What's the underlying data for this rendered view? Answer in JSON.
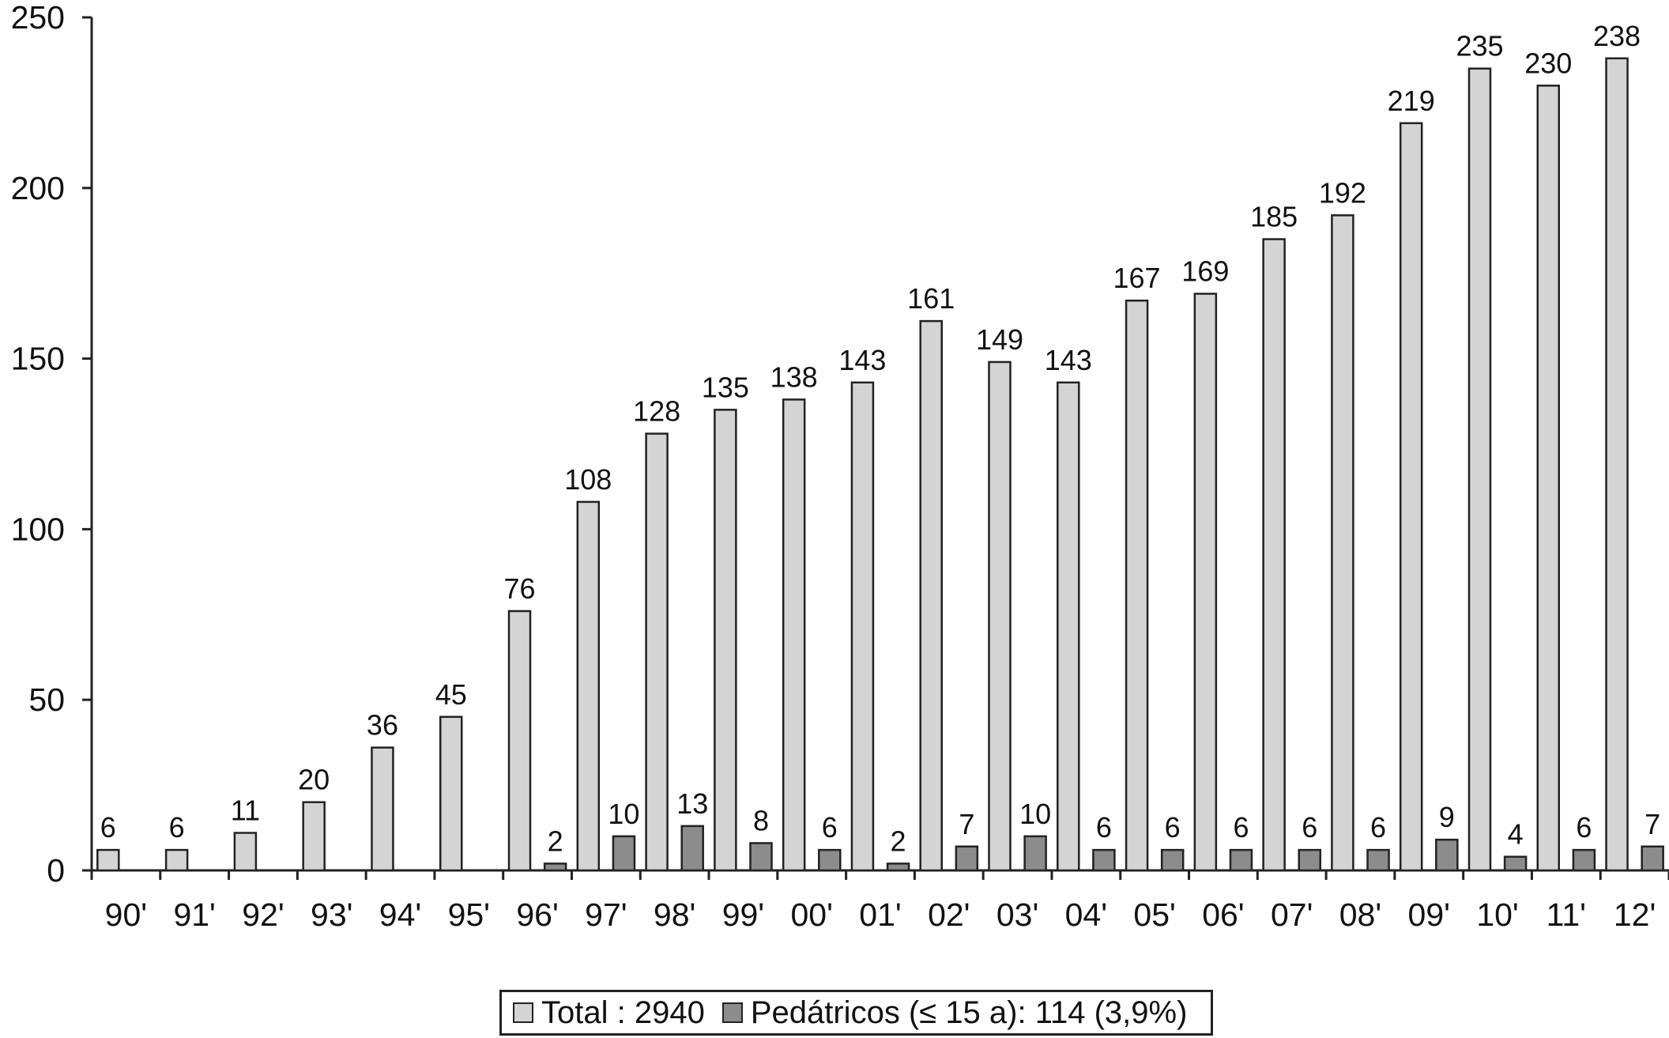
{
  "chart_data": {
    "type": "bar",
    "categories": [
      "90'",
      "91'",
      "92'",
      "93'",
      "94'",
      "95'",
      "96'",
      "97'",
      "98'",
      "99'",
      "00'",
      "01'",
      "02'",
      "03'",
      "04'",
      "05'",
      "06'",
      "07'",
      "08'",
      "09'",
      "10'",
      "11'",
      "12'"
    ],
    "series": [
      {
        "name": "Total : 2940",
        "color": "#d4d4d4",
        "values": [
          6,
          6,
          11,
          20,
          36,
          45,
          76,
          108,
          128,
          135,
          138,
          143,
          161,
          149,
          143,
          167,
          169,
          185,
          192,
          219,
          235,
          230,
          238
        ]
      },
      {
        "name": "Pedátricos (≤ 15 a): 114 (3,9%)",
        "color": "#8c8c8c",
        "values": [
          null,
          null,
          null,
          null,
          null,
          null,
          2,
          10,
          13,
          8,
          6,
          2,
          7,
          10,
          6,
          6,
          6,
          6,
          6,
          9,
          4,
          6,
          7
        ]
      }
    ],
    "yticks": [
      0,
      50,
      100,
      150,
      200,
      250
    ],
    "ylim": [
      0,
      250
    ],
    "title": "",
    "xlabel": "",
    "ylabel": "",
    "grid": false,
    "legend_position": "bottom"
  }
}
